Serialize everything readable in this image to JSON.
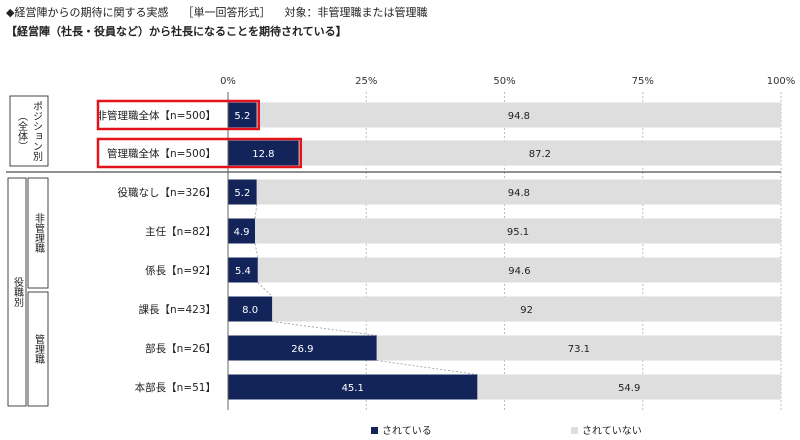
{
  "header": {
    "title": "◆経営陣からの期待に関する実感",
    "format": "［単一回答形式］",
    "target": "対象：非管理職または管理職",
    "subtitle": "【経営陣（社長・役員など）から社長になることを期待されている】"
  },
  "groups": {
    "position_outer": "ポジション別",
    "position_inner": "（全体）",
    "role_outer": "役職別",
    "role_nonmanager": "非管理職",
    "role_manager": "管理職"
  },
  "colors": {
    "expected": "#13245b",
    "not_expected": "#dedede",
    "highlight": "#e1151b"
  },
  "chart_data": {
    "type": "bar",
    "orientation": "horizontal-stacked-100",
    "categories": [
      "非管理職全体【n=500】",
      "管理職全体【n=500】",
      "役職なし【n=326】",
      "主任【n=82】",
      "係長【n=92】",
      "課長【n=423】",
      "部長【n=26】",
      "本部長【n=51】"
    ],
    "series": [
      {
        "name": "されている",
        "values": [
          5.2,
          12.8,
          5.2,
          4.9,
          5.4,
          8.0,
          26.9,
          45.1
        ],
        "labels": [
          "5.2",
          "12.8",
          "5.2",
          "4.9",
          "5.4",
          "8.0",
          "26.9",
          "45.1"
        ]
      },
      {
        "name": "されていない",
        "values": [
          94.8,
          87.2,
          94.8,
          95.1,
          94.6,
          92.0,
          73.1,
          54.9
        ],
        "labels": [
          "94.8",
          "87.2",
          "94.8",
          "95.1",
          "94.6",
          "92",
          "73.1",
          "54.9"
        ]
      }
    ],
    "xlim": [
      0,
      100
    ],
    "xticks": [
      "0%",
      "25%",
      "50%",
      "75%",
      "100%"
    ],
    "highlighted_categories": [
      "非管理職全体【n=500】",
      "管理職全体【n=500】"
    ],
    "legend_position": "bottom"
  }
}
